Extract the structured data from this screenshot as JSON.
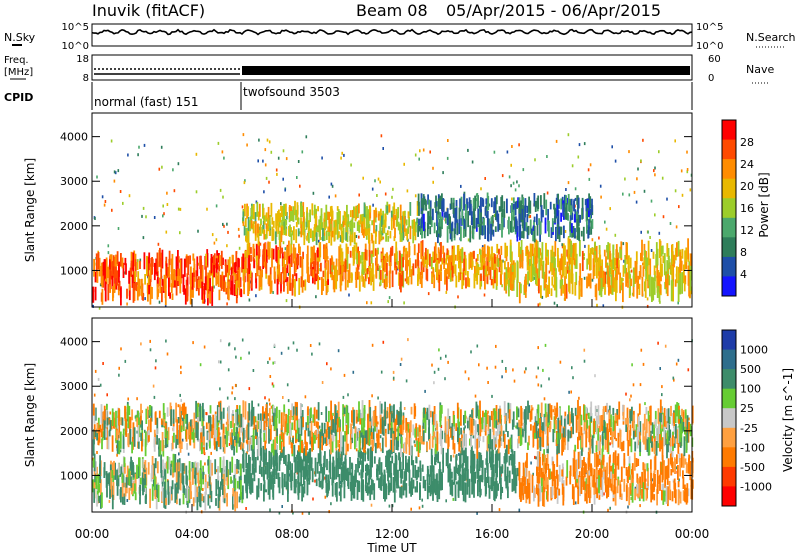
{
  "header": {
    "station": "Inuvik (fitACF)",
    "beam": "Beam 08",
    "date_range": "05/Apr/2015 - 06/Apr/2015"
  },
  "top_panels": {
    "nsky_label": "N.Sky",
    "nsky_ticks": [
      "10^5",
      "10^0"
    ],
    "nsearch_label": "N.Search",
    "nsearch_ticks": [
      "10^5",
      "10^0"
    ],
    "freq_label_1": "Freq.",
    "freq_label_2": "[MHz]",
    "freq_ticks": [
      "18",
      "8"
    ],
    "nave_label": "Nave",
    "nave_ticks": [
      "60",
      "0"
    ],
    "cpid_label": "CPID",
    "cpid_modes": [
      "normal (fast) 151",
      "twofsound 3503"
    ]
  },
  "x_axis": {
    "label": "Time UT",
    "ticks": [
      "00:00",
      "04:00",
      "08:00",
      "12:00",
      "16:00",
      "20:00",
      "00:00"
    ]
  },
  "chart_data": [
    {
      "type": "heatmap",
      "panel": "power",
      "ylabel": "Slant Range [km]",
      "yticks": [
        "4000",
        "3000",
        "2000",
        "1000"
      ],
      "ylim": [
        180,
        4530
      ],
      "xlim_hours": [
        0,
        24
      ],
      "colorbar_label": "Power [dB]",
      "colorbar_ticks": [
        "28",
        "24",
        "20",
        "16",
        "12",
        "8",
        "4"
      ],
      "colors": [
        "#ff0000",
        "#ff4a00",
        "#ff8c00",
        "#e8b800",
        "#9ccd2a",
        "#4ba86c",
        "#2e7d5a",
        "#1e4fa8",
        "#1414ff"
      ],
      "bands": [
        {
          "h0": 0.0,
          "h1": 6.0,
          "r0": 400,
          "r1": 1300,
          "value": 26
        },
        {
          "h0": 6.0,
          "h1": 9.5,
          "r0": 600,
          "r1": 1500,
          "value": 25
        },
        {
          "h0": 9.5,
          "h1": 16.5,
          "r0": 700,
          "r1": 1500,
          "value": 22
        },
        {
          "h0": 16.5,
          "h1": 24.0,
          "r0": 500,
          "r1": 1500,
          "value": 20
        },
        {
          "h0": 6.0,
          "h1": 13.0,
          "r0": 1700,
          "r1": 2400,
          "value": 18
        },
        {
          "h0": 13.0,
          "h1": 20.0,
          "r0": 1800,
          "r1": 2600,
          "value": 8
        }
      ]
    },
    {
      "type": "heatmap",
      "panel": "velocity",
      "ylabel": "Slant Range [km]",
      "yticks": [
        "4000",
        "3000",
        "2000",
        "1000"
      ],
      "ylim": [
        180,
        4530
      ],
      "xlim_hours": [
        0,
        24
      ],
      "colorbar_label": "Velocity [m s^-1]",
      "colorbar_ticks": [
        "1000",
        "500",
        "100",
        "25",
        "-25",
        "-100",
        "-500",
        "-1000"
      ],
      "colors": [
        "#1e3ca8",
        "#2e6e8c",
        "#3d8c6a",
        "#66cc33",
        "#c8c8c8",
        "#ffa040",
        "#ff7a00",
        "#ff3a00",
        "#ff0000"
      ],
      "bands": [
        {
          "h0": 0.0,
          "h1": 6.0,
          "r0": 400,
          "r1": 1300,
          "value": 100
        },
        {
          "h0": 6.0,
          "h1": 17.0,
          "r0": 600,
          "r1": 1500,
          "value": 300
        },
        {
          "h0": 17.0,
          "h1": 24.0,
          "r0": 500,
          "r1": 1400,
          "value": -150
        },
        {
          "h0": 0.0,
          "h1": 24.0,
          "r0": 1600,
          "r1": 2500,
          "value": 0
        }
      ]
    }
  ]
}
